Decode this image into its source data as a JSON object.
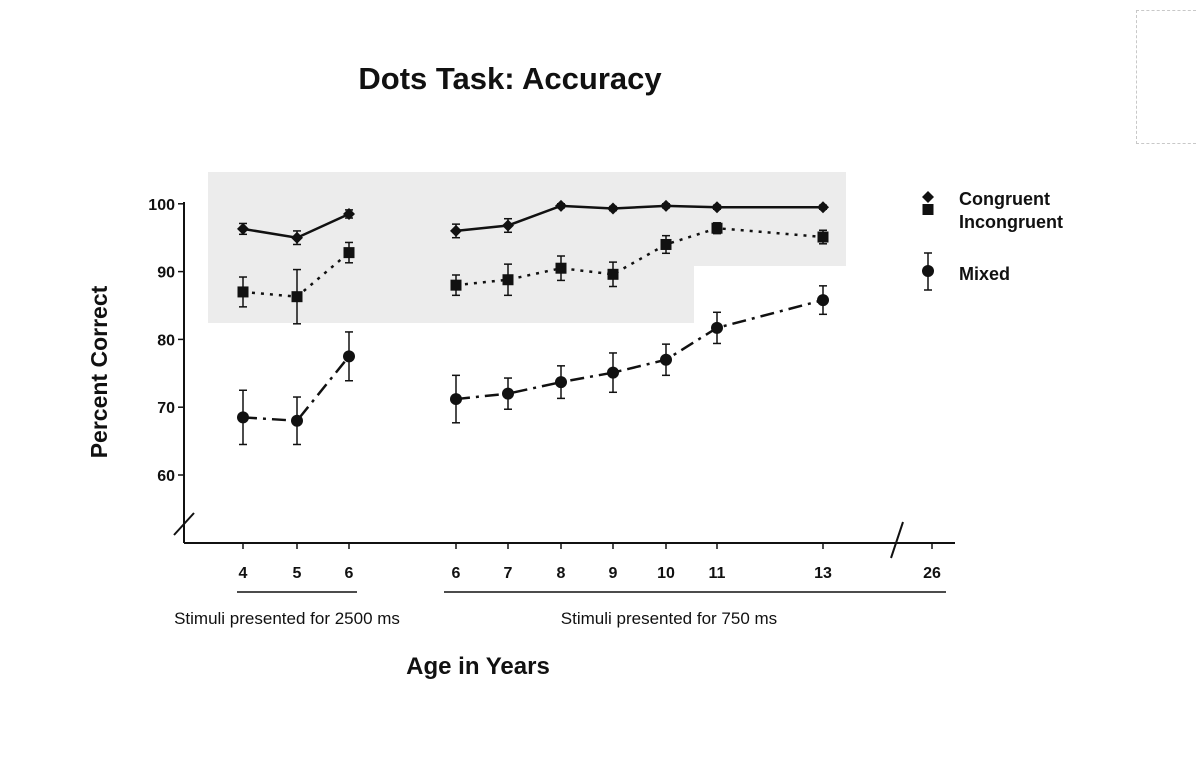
{
  "chart_data": {
    "type": "line",
    "title": "Dots Task: Accuracy",
    "xlabel": "Age in Years",
    "ylabel": "Percent Correct",
    "x_ticks": [
      "4",
      "5",
      "6",
      "6",
      "7",
      "8",
      "9",
      "10",
      "11",
      "13",
      "26"
    ],
    "y_ticks": [
      "60",
      "70",
      "80",
      "90",
      "100"
    ],
    "ylim": [
      55,
      100
    ],
    "axis_break": true,
    "shaded_region": "Congruent / Incongruent range",
    "groups": [
      {
        "label": "Stimuli presented for 2500 ms",
        "ages": [
          4,
          5,
          6
        ]
      },
      {
        "label": "Stimuli presented for 750 ms",
        "ages": [
          6,
          7,
          8,
          9,
          10,
          11,
          13,
          26
        ]
      }
    ],
    "series": [
      {
        "name": "Congruent",
        "marker": "diamond",
        "line": "solid",
        "segments": [
          {
            "x": [
              4,
              5,
              6
            ],
            "y": [
              96.3,
              95.0,
              98.5
            ],
            "err": [
              0.8,
              1.0,
              0.6
            ]
          },
          {
            "x": [
              6,
              7,
              8,
              9,
              10,
              11,
              13
            ],
            "y": [
              96.0,
              96.8,
              99.7,
              99.3,
              99.7,
              99.5,
              99.5
            ],
            "err": [
              1.0,
              1.0,
              0.3,
              0.3,
              0.3,
              0.3,
              0.3
            ]
          }
        ]
      },
      {
        "name": "Incongruent",
        "marker": "square",
        "line": "dotted",
        "segments": [
          {
            "x": [
              4,
              5,
              6
            ],
            "y": [
              87.0,
              86.3,
              92.8
            ],
            "err": [
              2.2,
              4.0,
              1.5
            ]
          },
          {
            "x": [
              6,
              7,
              8,
              9,
              10,
              11,
              13
            ],
            "y": [
              88.0,
              88.8,
              90.5,
              89.6,
              94.0,
              96.4,
              95.1
            ],
            "err": [
              1.5,
              2.3,
              1.8,
              1.8,
              1.3,
              0.8,
              1.0
            ]
          }
        ]
      },
      {
        "name": "Mixed",
        "marker": "circle",
        "line": "dash-dot",
        "segments": [
          {
            "x": [
              4,
              5,
              6
            ],
            "y": [
              68.5,
              68.0,
              77.5
            ],
            "err": [
              4.0,
              3.5,
              3.6
            ]
          },
          {
            "x": [
              6,
              7,
              8,
              9,
              10,
              11,
              13
            ],
            "y": [
              71.2,
              72.0,
              73.7,
              75.1,
              77.0,
              81.7,
              85.8
            ],
            "err": [
              3.5,
              2.3,
              2.4,
              2.9,
              2.3,
              2.3,
              2.1
            ]
          }
        ]
      }
    ],
    "legend": {
      "placement": "right",
      "entries": [
        "Congruent",
        "Incongruent",
        "Mixed"
      ]
    },
    "colors": {
      "ink": "#111111",
      "shade": "#ececec"
    }
  }
}
